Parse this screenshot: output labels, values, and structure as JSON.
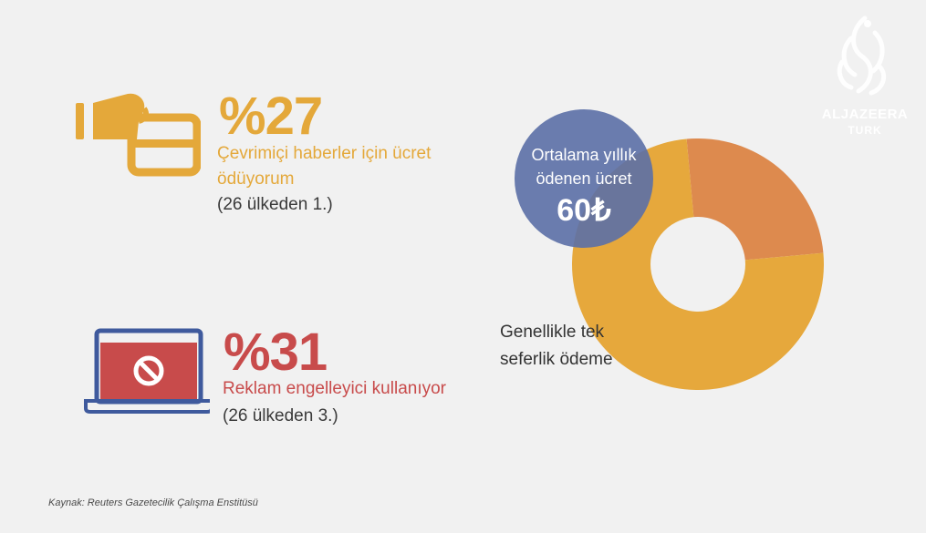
{
  "colors": {
    "orange": "#e4a83a",
    "red": "#c84b4b",
    "blue_circle": "#5b6fa6",
    "donut_main": "#e6a83c",
    "donut_minor": "#dd8a4e",
    "laptop_frame": "#3f5a9d"
  },
  "logo": {
    "brand": "ALJAZEERA",
    "sub": "TURK"
  },
  "stat1": {
    "percent": "%27",
    "line1": "Çevrimiçi haberler için ücret",
    "line2": "ödüyorum",
    "rank": "(26 ülkeden 1.)",
    "icon": "hand-card-icon"
  },
  "stat2": {
    "percent": "%31",
    "line1": "Reklam engelleyici kullanıyor",
    "rank": "(26 ülkeden 3.)",
    "icon": "laptop-block-icon"
  },
  "bubble": {
    "line1": "Ortalama yıllık",
    "line2": "ödenen ücret",
    "value": "60₺"
  },
  "donut_label": {
    "line1": "Genellikle tek",
    "line2": "seferlik ödeme"
  },
  "source": "Kaynak: Reuters Gazetecilik Çalışma Enstitüsü",
  "chart_data": {
    "type": "pie",
    "style": "donut",
    "categories": [
      "Genellikle tek seferlik ödeme",
      ""
    ],
    "values": [
      75,
      25
    ],
    "colors": [
      "#e6a83c",
      "#dd8a4e"
    ]
  }
}
